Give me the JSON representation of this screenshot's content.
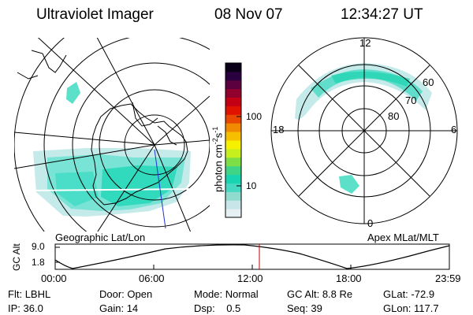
{
  "header": {
    "title": "Ultraviolet Imager",
    "date": "08 Nov 07",
    "time": "12:34:27 UT"
  },
  "left_map": {
    "caption": "Geographic Lat/Lon"
  },
  "right_map": {
    "caption": "Apex MLat/MLT",
    "mlt_labels": {
      "top": "12",
      "left": "18",
      "right": "6",
      "bottom": "0"
    },
    "lat_labels": [
      "60",
      "70",
      "80"
    ]
  },
  "colorbar": {
    "unit_label": "photon cm",
    "unit_sup": "-2",
    "unit_mid": "s",
    "unit_sup2": "-1",
    "ticks": [
      "100",
      "10"
    ],
    "colors": [
      "#e6f0f4",
      "#c8e6ea",
      "#8fdccf",
      "#45d8c3",
      "#19d4b0",
      "#3fd486",
      "#7ede45",
      "#c7ef1e",
      "#f4f000",
      "#f6c000",
      "#f08a00",
      "#e84800",
      "#e01200",
      "#c40014",
      "#92002e",
      "#5c0040",
      "#2a0040",
      "#0a0018"
    ]
  },
  "altitude_plot": {
    "ylabel": "GC Alt",
    "yticks": [
      "9.0",
      "1.8"
    ],
    "xticks": [
      "00:00",
      "06:00",
      "12:00",
      "18:00",
      "23:59"
    ]
  },
  "info": {
    "row1": [
      {
        "k": "Flt:",
        "v": "LBHL"
      },
      {
        "k": "Door:",
        "v": "Open"
      },
      {
        "k": "Mode:",
        "v": "Normal"
      },
      {
        "k": "GC Alt:",
        "v": "8.8 Re"
      },
      {
        "k": "GLat:",
        "v": "-72.9"
      }
    ],
    "row2": [
      {
        "k": "IP:",
        "v": "36.0"
      },
      {
        "k": "Gain:",
        "v": "14"
      },
      {
        "k": "Dsp:",
        "v": "0.5"
      },
      {
        "k": "Seq:",
        "v": "39"
      },
      {
        "k": "GLon:",
        "v": "117.7"
      }
    ]
  }
}
